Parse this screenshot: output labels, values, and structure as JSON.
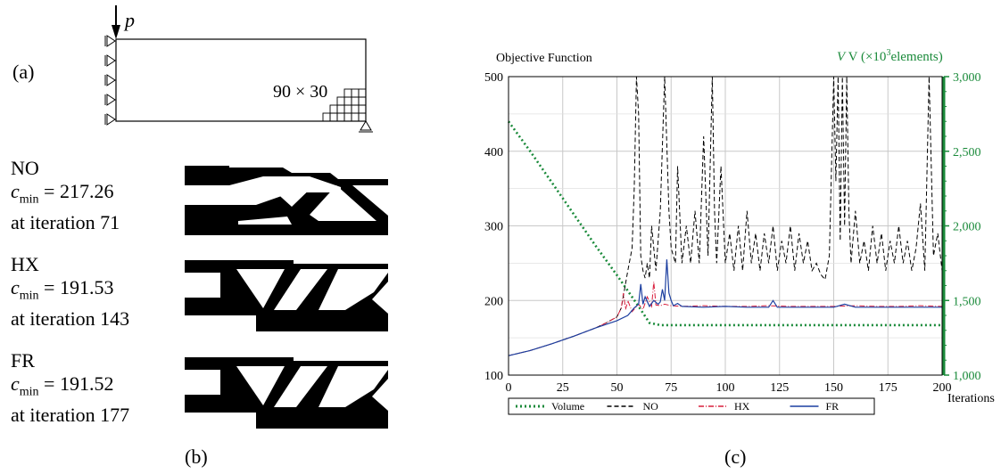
{
  "panel_a": {
    "label": "(a)",
    "load_symbol": "p",
    "mesh_label": "90 × 30"
  },
  "panel_b": {
    "label": "(b)",
    "cmin_symbol": "c",
    "cmin_sub": "min",
    "designs": [
      {
        "name": "NO",
        "cmin_text": " = 217.26",
        "iter_text": "at iteration 71"
      },
      {
        "name": "HX",
        "cmin_text": " = 191.53",
        "iter_text": "at iteration 143"
      },
      {
        "name": "FR",
        "cmin_text": " = 191.52",
        "iter_text": "at iteration 177"
      }
    ]
  },
  "panel_c": {
    "label": "(c)"
  },
  "colors": {
    "volume": "#1a8a3a",
    "no": "#000000",
    "hx": "#d81e3c",
    "fr": "#1c3fa0",
    "grid": "#c8c8c8"
  },
  "chart_data": {
    "type": "line",
    "title_left": "Objective Function",
    "title_right_prefix": "V (×10",
    "title_right_sup": "3",
    "title_right_suffix": "elements)",
    "xlabel": "Iterations",
    "xlim": [
      0,
      200
    ],
    "ylim_left": [
      100,
      500
    ],
    "ylim_right": [
      1000,
      3000
    ],
    "x_ticks": [
      "0",
      "25",
      "50",
      "75",
      "100",
      "125",
      "150",
      "175",
      "200"
    ],
    "y_ticks_left": [
      "100",
      "200",
      "300",
      "400",
      "500"
    ],
    "y_ticks_right": [
      "1,000",
      "1,500",
      "2,000",
      "2,500",
      "3,000"
    ],
    "series": [
      {
        "name": "Volume",
        "axis": "right",
        "x": [
          0,
          10,
          20,
          30,
          40,
          50,
          60,
          65,
          70,
          80,
          100,
          150,
          200
        ],
        "y": [
          2700,
          2500,
          2290,
          2080,
          1870,
          1670,
          1460,
          1350,
          1335,
          1335,
          1335,
          1335,
          1335
        ]
      },
      {
        "name": "NO",
        "axis": "left",
        "x": [
          0,
          10,
          20,
          30,
          40,
          45,
          50,
          52,
          55,
          57,
          58,
          59,
          60,
          61,
          62,
          63,
          64,
          65,
          66,
          67,
          68,
          70,
          72,
          74,
          75,
          77,
          78,
          80,
          82,
          84,
          86,
          88,
          90,
          92,
          94,
          95,
          96,
          98,
          100,
          102,
          104,
          106,
          108,
          110,
          112,
          114,
          116,
          118,
          120,
          122,
          124,
          126,
          128,
          130,
          132,
          134,
          136,
          138,
          140,
          142,
          144,
          146,
          148,
          150,
          151,
          152,
          153,
          154,
          155,
          156,
          157,
          158,
          160,
          162,
          164,
          166,
          168,
          170,
          172,
          174,
          176,
          178,
          180,
          182,
          184,
          186,
          188,
          190,
          192,
          194,
          196,
          198,
          200
        ],
        "y": [
          126,
          133,
          142,
          152,
          163,
          170,
          178,
          190,
          240,
          270,
          350,
          500,
          450,
          260,
          240,
          230,
          250,
          230,
          300,
          270,
          240,
          320,
          500,
          320,
          270,
          250,
          380,
          250,
          300,
          250,
          320,
          250,
          420,
          260,
          500,
          320,
          250,
          380,
          250,
          290,
          240,
          300,
          240,
          320,
          250,
          290,
          240,
          290,
          250,
          300,
          240,
          280,
          250,
          300,
          240,
          290,
          250,
          280,
          240,
          250,
          235,
          228,
          260,
          500,
          360,
          500,
          280,
          500,
          300,
          500,
          320,
          250,
          320,
          250,
          280,
          240,
          300,
          250,
          290,
          240,
          280,
          250,
          300,
          250,
          280,
          240,
          270,
          330,
          240,
          500,
          260,
          290,
          240
        ]
      },
      {
        "name": "HX",
        "axis": "left",
        "x": [
          0,
          10,
          20,
          30,
          40,
          45,
          50,
          52,
          53,
          54,
          55,
          57,
          60,
          62,
          64,
          66,
          67,
          68,
          70,
          72,
          75,
          80,
          90,
          100,
          110,
          120,
          130,
          140,
          150,
          160,
          170,
          180,
          190,
          200
        ],
        "y": [
          126,
          133,
          142,
          152,
          163,
          170,
          178,
          190,
          210,
          188,
          200,
          185,
          195,
          188,
          205,
          192,
          225,
          194,
          193,
          195,
          193,
          192,
          193,
          192,
          192,
          193,
          192,
          192,
          192,
          193,
          192,
          192,
          193,
          192
        ]
      },
      {
        "name": "FR",
        "axis": "left",
        "x": [
          0,
          10,
          20,
          30,
          40,
          45,
          50,
          55,
          58,
          60,
          61,
          62,
          63,
          65,
          67,
          69,
          70,
          71,
          72,
          73,
          74,
          75,
          76,
          78,
          80,
          90,
          100,
          110,
          120,
          122,
          124,
          130,
          140,
          150,
          155,
          160,
          170,
          180,
          190,
          200
        ],
        "y": [
          126,
          133,
          142,
          152,
          163,
          168,
          173,
          180,
          190,
          195,
          222,
          195,
          205,
          192,
          200,
          195,
          198,
          215,
          200,
          255,
          210,
          200,
          193,
          196,
          192,
          191,
          192,
          191,
          191,
          200,
          191,
          191,
          191,
          191,
          195,
          191,
          191,
          191,
          191,
          191
        ]
      }
    ],
    "legend_position": "bottom"
  }
}
